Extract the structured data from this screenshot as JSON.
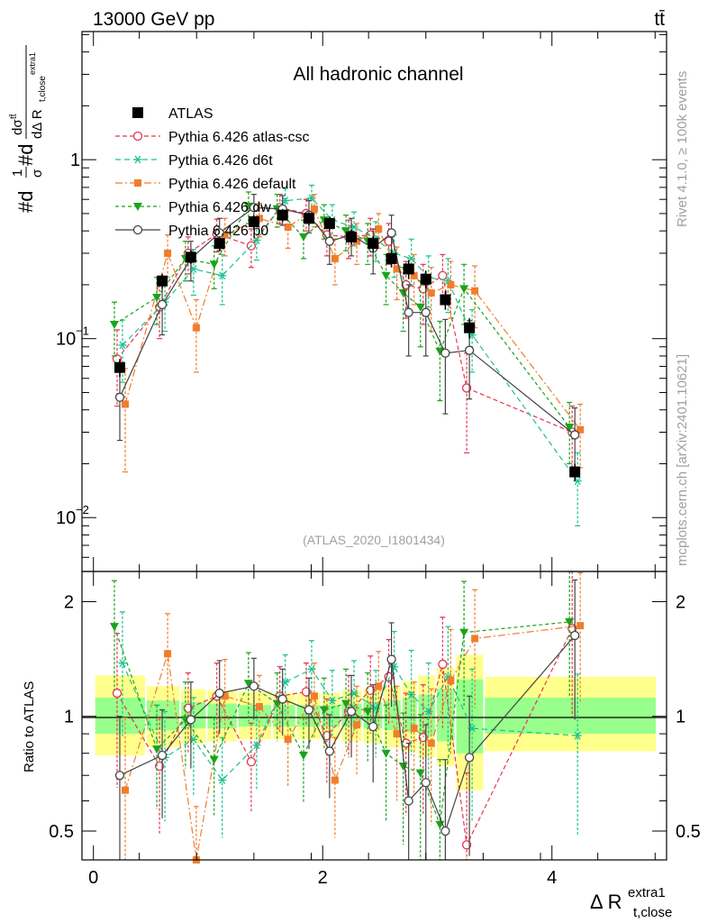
{
  "header": {
    "energy_label": "13000 GeV pp",
    "process_label": "tt̄"
  },
  "chart_data": [
    {
      "type": "line",
      "panel": "main",
      "title": "All hadronic channel",
      "ylabel_parts": [
        "#d",
        "1",
        "σ",
        "#d",
        "dσ",
        "tt̄",
        "dΔ R",
        "t,close",
        "extra1"
      ],
      "xlabel": "Δ R",
      "xlabel_sub": "t,close",
      "xlabel_sup": "extra1",
      "yscale": "log",
      "xlim": [
        -0.1,
        5.0
      ],
      "ylim": [
        0.005,
        5.2
      ],
      "yticks": [
        {
          "value": 1,
          "label": "1",
          "sup": ""
        },
        {
          "value": 0.1,
          "label": "10",
          "sup": "−1"
        },
        {
          "value": 0.01,
          "label": "10",
          "sup": "−2"
        }
      ],
      "analysis_tag": "(ATLAS_2020_I1801434)",
      "side_text_top": "Rivet 4.1.0, ≥ 100k events",
      "side_text_bottom": "mcplots.cern.ch [arXiv:2401.10621]",
      "x": [
        0.23,
        0.6,
        0.85,
        1.1,
        1.4,
        1.65,
        1.88,
        2.06,
        2.25,
        2.44,
        2.6,
        2.75,
        2.9,
        3.07,
        3.28,
        4.2
      ],
      "series": [
        {
          "name": "ATLAS",
          "style": "data",
          "color": "#000000",
          "values": [
            0.069,
            0.21,
            0.285,
            0.34,
            0.45,
            0.49,
            0.47,
            0.44,
            0.37,
            0.34,
            0.28,
            0.245,
            0.215,
            0.165,
            0.115,
            0.018
          ],
          "errors": [
            0.008,
            0.02,
            0.025,
            0.03,
            0.04,
            0.04,
            0.04,
            0.04,
            0.035,
            0.035,
            0.03,
            0.03,
            0.025,
            0.02,
            0.015,
            0.002
          ]
        },
        {
          "name": "Pythia 6.426 atlas-csc",
          "style": "mc",
          "color": "#e8344e",
          "marker": "open-circle",
          "dash": "5,3",
          "values": [
            0.077,
            0.15,
            0.3,
            0.385,
            0.33,
            0.54,
            0.5,
            0.38,
            0.37,
            0.38,
            0.35,
            0.2,
            0.19,
            0.225,
            0.053,
            0.03
          ],
          "errors": [
            0.035,
            0.05,
            0.07,
            0.08,
            0.08,
            0.1,
            0.1,
            0.09,
            0.09,
            0.09,
            0.09,
            0.07,
            0.07,
            0.07,
            0.03,
            0.012
          ]
        },
        {
          "name": "Pythia 6.426 d6t",
          "style": "mc",
          "color": "#19c390",
          "marker": "asterisk",
          "dash": "6,4",
          "values": [
            0.092,
            0.16,
            0.245,
            0.225,
            0.355,
            0.59,
            0.61,
            0.46,
            0.42,
            0.36,
            0.3,
            0.28,
            0.22,
            0.21,
            0.105,
            0.016
          ],
          "errors": [
            0.035,
            0.05,
            0.07,
            0.07,
            0.08,
            0.1,
            0.11,
            0.1,
            0.09,
            0.09,
            0.08,
            0.08,
            0.07,
            0.07,
            0.04,
            0.007
          ]
        },
        {
          "name": "Pythia 6.426 default",
          "style": "mc",
          "color": "#f07d2c",
          "marker": "square",
          "dash": "8,3,2,3",
          "values": [
            0.043,
            0.3,
            0.115,
            0.38,
            0.47,
            0.42,
            0.53,
            0.28,
            0.35,
            0.41,
            0.245,
            0.225,
            0.18,
            0.2,
            0.185,
            0.031
          ],
          "errors": [
            0.025,
            0.08,
            0.05,
            0.09,
            0.1,
            0.1,
            0.11,
            0.08,
            0.09,
            0.09,
            0.08,
            0.07,
            0.07,
            0.07,
            0.07,
            0.012
          ]
        },
        {
          "name": "Pythia 6.426 dw",
          "style": "mc",
          "color": "#1aa31a",
          "marker": "triangle-down",
          "dash": "4,3",
          "values": [
            0.12,
            0.17,
            0.28,
            0.26,
            0.55,
            0.53,
            0.37,
            0.46,
            0.4,
            0.35,
            0.225,
            0.18,
            0.15,
            0.085,
            0.19,
            0.032
          ],
          "errors": [
            0.04,
            0.05,
            0.07,
            0.07,
            0.11,
            0.11,
            0.09,
            0.1,
            0.09,
            0.09,
            0.07,
            0.07,
            0.06,
            0.04,
            0.07,
            0.012
          ]
        },
        {
          "name": "Pythia 6.426 p0",
          "style": "mc",
          "color": "#444444",
          "marker": "open-circle",
          "dash": "",
          "values": [
            0.047,
            0.155,
            0.28,
            0.39,
            0.54,
            0.53,
            0.49,
            0.35,
            0.38,
            0.32,
            0.39,
            0.14,
            0.14,
            0.083,
            0.086,
            0.029
          ],
          "errors": [
            0.02,
            0.05,
            0.07,
            0.08,
            0.1,
            0.1,
            0.1,
            0.09,
            0.09,
            0.09,
            0.1,
            0.06,
            0.06,
            0.045,
            0.04,
            0.012
          ]
        }
      ]
    },
    {
      "type": "line",
      "panel": "ratio",
      "ylabel": "Ratio to ATLAS",
      "yscale": "log",
      "ylim": [
        0.42,
        2.4
      ],
      "yticks": [
        {
          "value": 2,
          "label": "2"
        },
        {
          "value": 1,
          "label": "1"
        },
        {
          "value": 0.5,
          "label": "0.5"
        }
      ],
      "xticks": [
        {
          "value": 0,
          "label": "0"
        },
        {
          "value": 2,
          "label": "2"
        },
        {
          "value": 4,
          "label": "4"
        }
      ],
      "bin_edges": [
        0.0,
        0.45,
        0.75,
        0.98,
        1.25,
        1.55,
        1.76,
        1.98,
        2.15,
        2.34,
        2.52,
        2.68,
        2.82,
        2.98,
        3.15,
        3.4,
        5.0
      ],
      "band_green": [
        [
          0.9,
          1.12
        ],
        [
          0.92,
          1.1
        ],
        [
          0.93,
          1.09
        ],
        [
          0.93,
          1.08
        ],
        [
          0.94,
          1.07
        ],
        [
          0.94,
          1.07
        ],
        [
          0.94,
          1.07
        ],
        [
          0.94,
          1.07
        ],
        [
          0.94,
          1.08
        ],
        [
          0.93,
          1.09
        ],
        [
          0.92,
          1.1
        ],
        [
          0.91,
          1.12
        ],
        [
          0.89,
          1.14
        ],
        [
          0.86,
          1.18
        ],
        [
          0.8,
          1.25
        ],
        [
          0.9,
          1.12
        ]
      ],
      "band_yellow": [
        [
          0.79,
          1.28
        ],
        [
          0.83,
          1.2
        ],
        [
          0.85,
          1.18
        ],
        [
          0.86,
          1.17
        ],
        [
          0.87,
          1.16
        ],
        [
          0.87,
          1.15
        ],
        [
          0.87,
          1.15
        ],
        [
          0.87,
          1.15
        ],
        [
          0.86,
          1.17
        ],
        [
          0.85,
          1.18
        ],
        [
          0.83,
          1.2
        ],
        [
          0.81,
          1.24
        ],
        [
          0.78,
          1.28
        ],
        [
          0.74,
          1.34
        ],
        [
          0.64,
          1.45
        ],
        [
          0.81,
          1.27
        ]
      ],
      "series": [
        {
          "name": "Pythia 6.426 atlas-csc",
          "values": [
            1.15,
            0.74,
            1.05,
            1.13,
            0.76,
            1.13,
            1.16,
            0.89,
            1.03,
            1.17,
            1.27,
            0.85,
            0.88,
            1.37,
            0.46,
            1.7
          ],
          "errors": [
            0.5,
            0.25,
            0.25,
            0.25,
            0.2,
            0.22,
            0.22,
            0.22,
            0.25,
            0.27,
            0.32,
            0.3,
            0.33,
            0.45,
            0.25,
            0.7
          ]
        },
        {
          "name": "Pythia 6.426 d6t",
          "values": [
            1.38,
            0.78,
            0.87,
            0.68,
            0.84,
            1.23,
            1.33,
            1.1,
            1.15,
            1.05,
            1.35,
            1.14,
            1.03,
            1.27,
            0.93,
            0.89
          ],
          "errors": [
            0.5,
            0.25,
            0.25,
            0.2,
            0.2,
            0.22,
            0.25,
            0.22,
            0.25,
            0.27,
            0.32,
            0.35,
            0.35,
            0.45,
            0.4,
            0.4
          ]
        },
        {
          "name": "Pythia 6.426 default",
          "values": [
            0.64,
            1.46,
            0.41,
            1.13,
            1.06,
            0.87,
            1.13,
            0.68,
            0.95,
            1.2,
            0.9,
            0.93,
            0.85,
            1.24,
            1.6,
            1.73
          ],
          "errors": [
            0.35,
            0.4,
            0.17,
            0.28,
            0.22,
            0.22,
            0.25,
            0.2,
            0.25,
            0.28,
            0.3,
            0.3,
            0.33,
            0.45,
            0.55,
            0.65
          ]
        },
        {
          "name": "Pythia 6.426 dw",
          "values": [
            1.72,
            0.82,
            0.98,
            0.77,
            1.22,
            1.08,
            0.79,
            1.04,
            1.08,
            1.03,
            0.8,
            0.74,
            0.71,
            0.52,
            1.66,
            1.77
          ],
          "errors": [
            0.55,
            0.25,
            0.25,
            0.22,
            0.25,
            0.22,
            0.2,
            0.22,
            0.25,
            0.27,
            0.27,
            0.28,
            0.3,
            0.25,
            0.6,
            0.65
          ]
        },
        {
          "name": "Pythia 6.426 p0",
          "values": [
            0.7,
            0.79,
            0.98,
            1.15,
            1.2,
            1.11,
            1.04,
            0.81,
            1.03,
            0.94,
            1.41,
            0.6,
            0.67,
            0.5,
            0.78,
            1.63
          ],
          "errors": [
            0.3,
            0.25,
            0.25,
            0.25,
            0.22,
            0.22,
            0.22,
            0.2,
            0.25,
            0.27,
            0.35,
            0.25,
            0.28,
            0.27,
            0.35,
            0.65
          ]
        }
      ]
    }
  ]
}
